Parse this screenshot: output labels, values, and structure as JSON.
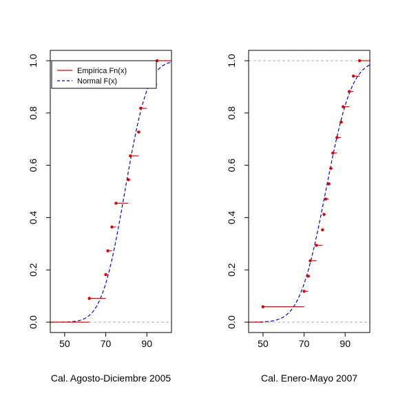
{
  "chart_data": [
    {
      "type": "line",
      "xlabel": "Cal. Agosto-Diciembre 2005",
      "ylabel": "",
      "xlim": [
        43,
        102
      ],
      "ylim": [
        0,
        1
      ],
      "xticks": [
        50,
        70,
        90
      ],
      "yticks": [
        0.0,
        0.2,
        0.4,
        0.6,
        0.8,
        1.0
      ],
      "ytick_labels": [
        "0.0",
        "0.2",
        "0.4",
        "0.6",
        "0.8",
        "1.0"
      ],
      "reference_lines_y": [
        0,
        1
      ],
      "legend": {
        "placement": "top-left",
        "entries": [
          "Empírica Fn(x)",
          "Normal F(x)"
        ]
      },
      "series": [
        {
          "name": "Empírica Fn(x)",
          "style": "step",
          "color": "#e00000",
          "points": [
            {
              "x": 62,
              "y": 0.091
            },
            {
              "x": 70,
              "y": 0.182
            },
            {
              "x": 71,
              "y": 0.273
            },
            {
              "x": 73,
              "y": 0.364
            },
            {
              "x": 75,
              "y": 0.455
            },
            {
              "x": 81,
              "y": 0.545
            },
            {
              "x": 82,
              "y": 0.636
            },
            {
              "x": 86,
              "y": 0.727
            },
            {
              "x": 87,
              "y": 0.818
            },
            {
              "x": 90,
              "y": 0.909
            },
            {
              "x": 95,
              "y": 1.0
            }
          ],
          "segment_ends": [
            70,
            71,
            73,
            75,
            81,
            82,
            86,
            87,
            90,
            95,
            102
          ]
        },
        {
          "name": "Normal F(x)",
          "style": "dashed",
          "color": "#0000cc",
          "mean": 79.3,
          "sd": 8.9
        }
      ]
    },
    {
      "type": "line",
      "xlabel": "Cal. Enero-Mayo 2007",
      "ylabel": "",
      "xlim": [
        43,
        102
      ],
      "ylim": [
        0,
        1
      ],
      "xticks": [
        50,
        70,
        90
      ],
      "yticks": [
        0.0,
        0.2,
        0.4,
        0.6,
        0.8,
        1.0
      ],
      "ytick_labels": [
        "0.0",
        "0.2",
        "0.4",
        "0.6",
        "0.8",
        "1.0"
      ],
      "reference_lines_y": [
        0,
        1
      ],
      "series": [
        {
          "name": "Empírica Fn(x)",
          "style": "step",
          "color": "#e00000",
          "points": [
            {
              "x": 50,
              "y": 0.059
            },
            {
              "x": 70,
              "y": 0.118
            },
            {
              "x": 72,
              "y": 0.176
            },
            {
              "x": 73,
              "y": 0.235
            },
            {
              "x": 76,
              "y": 0.294
            },
            {
              "x": 79,
              "y": 0.353
            },
            {
              "x": 79.7,
              "y": 0.412
            },
            {
              "x": 80.5,
              "y": 0.471
            },
            {
              "x": 82,
              "y": 0.529
            },
            {
              "x": 83,
              "y": 0.588
            },
            {
              "x": 84,
              "y": 0.647
            },
            {
              "x": 86,
              "y": 0.706
            },
            {
              "x": 88,
              "y": 0.765
            },
            {
              "x": 89,
              "y": 0.824
            },
            {
              "x": 92,
              "y": 0.882
            },
            {
              "x": 94,
              "y": 0.941
            },
            {
              "x": 97,
              "y": 1.0
            }
          ],
          "segment_ends": [
            70,
            72,
            73,
            76,
            79,
            79.7,
            80.5,
            82,
            83,
            84,
            86,
            88,
            89,
            92,
            94,
            97,
            102
          ]
        },
        {
          "name": "Normal F(x)",
          "style": "dashed",
          "color": "#0000cc",
          "mean": 80.5,
          "sd": 10.0
        }
      ]
    }
  ]
}
